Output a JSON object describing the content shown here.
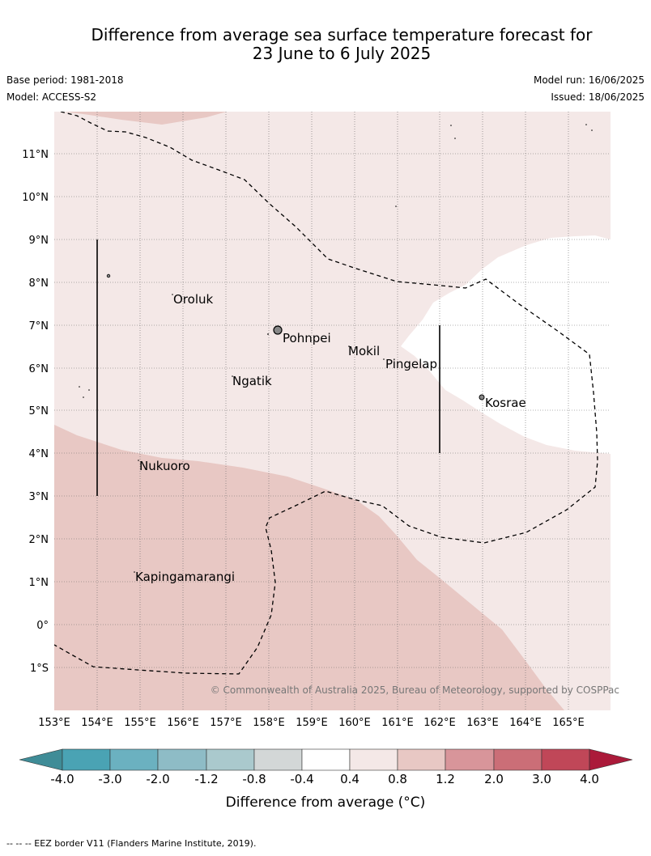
{
  "title": {
    "line1": "Difference from average sea surface temperature forecast for",
    "line2": "23 June to 6 July 2025"
  },
  "meta": {
    "base_period": "Base period: 1981-2018",
    "model": "Model: ACCESS-S2",
    "model_run": "Model run: 16/06/2025",
    "issued": "Issued: 18/06/2025"
  },
  "map": {
    "lat_labels": [
      "11°N",
      "10°N",
      "9°N",
      "8°N",
      "7°N",
      "6°N",
      "5°N",
      "4°N",
      "3°N",
      "2°N",
      "1°N",
      "0°",
      "1°S"
    ],
    "lon_labels": [
      "153°E",
      "154°E",
      "155°E",
      "156°E",
      "157°E",
      "158°E",
      "159°E",
      "160°E",
      "161°E",
      "162°E",
      "163°E",
      "164°E",
      "165°E"
    ],
    "places": {
      "oroluk": "Oroluk",
      "pohnpei": "Pohnpei",
      "mokil": "Mokil",
      "pingelap": "Pingelap",
      "ngatik": "Ngatik",
      "kosrae": "Kosrae",
      "nukuoro": "Nukuoro",
      "kapingamarangi": "Kapingamarangi"
    },
    "copyright": "© Commonwealth of Australia 2025, Bureau of Meteorology, supported by COSPPac",
    "fill_colors": {
      "range_0_4_to_0_8": "#f4e8e7",
      "range_0_8_to_1_2": "#e8c8c4",
      "range_minus0_4_to_0_4": "#ffffff"
    }
  },
  "colorbar": {
    "ticks": [
      "-4.0",
      "-3.0",
      "-2.0",
      "-1.2",
      "-0.8",
      "-0.4",
      "0.4",
      "0.8",
      "1.2",
      "2.0",
      "3.0",
      "4.0"
    ],
    "colors": [
      "#3f8c97",
      "#4aa3b4",
      "#6bb1c0",
      "#8ebcc6",
      "#aac9cd",
      "#d3d7d7",
      "#ffffff",
      "#f4e8e7",
      "#e8c8c4",
      "#d8959a",
      "#cb6e77",
      "#c04758",
      "#ab1a3a"
    ],
    "title": "Difference from average (°C)"
  },
  "footnote": "--  --  -- EEZ border V11 (Flanders Marine Institute, 2019)."
}
